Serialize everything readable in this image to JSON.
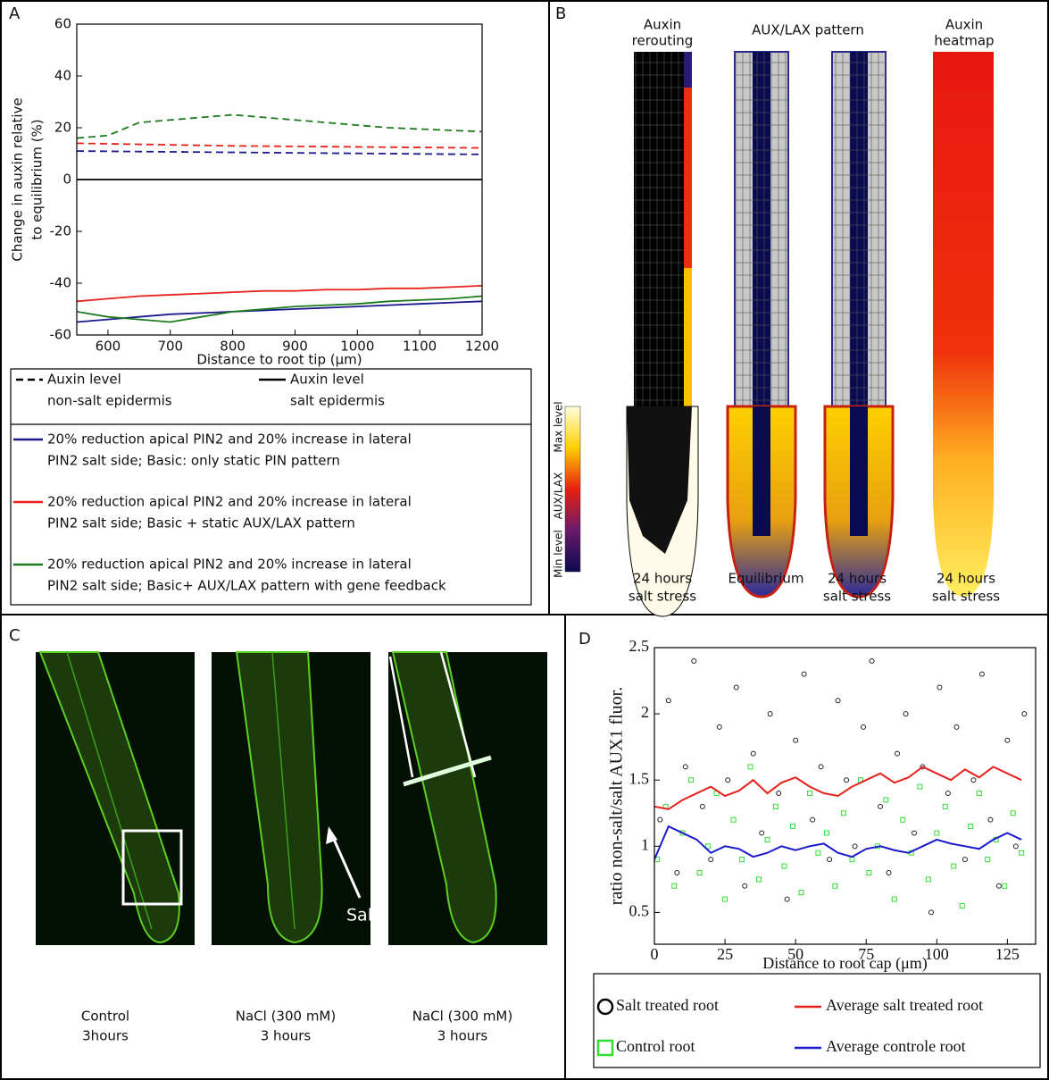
{
  "chart_data": [
    {
      "type": "line",
      "xlabel": "Distance to root tip (μm)",
      "ylabel": [
        "Change in auxin relative",
        "to equilibrium (%)"
      ],
      "x": [
        550,
        600,
        650,
        700,
        750,
        800,
        850,
        900,
        950,
        1000,
        1050,
        1100,
        1150,
        1200
      ],
      "xlim": [
        550,
        1200
      ],
      "xticks": [
        600,
        700,
        800,
        900,
        1000,
        1100,
        1200
      ],
      "ylim": [
        -60,
        60
      ],
      "yticks": [
        -60,
        -40,
        -20,
        0,
        20,
        40,
        60
      ],
      "series": [
        {
          "color": "#1e7a1e",
          "style": "dashed",
          "values": [
            16,
            17,
            22,
            23,
            24,
            25,
            24,
            23,
            22,
            21,
            20,
            19.5,
            19,
            18.5
          ]
        },
        {
          "color": "#e8211d",
          "style": "dashed",
          "values": [
            14,
            13.8,
            13.6,
            13.4,
            13.2,
            13,
            12.9,
            12.8,
            12.7,
            12.6,
            12.5,
            12.4,
            12.3,
            12.2
          ]
        },
        {
          "color": "#1a1a8c",
          "style": "dashed",
          "values": [
            11,
            10.9,
            10.8,
            10.7,
            10.6,
            10.5,
            10.4,
            10.3,
            10.2,
            10.1,
            10,
            9.9,
            9.8,
            9.7
          ]
        },
        {
          "color": "#000000",
          "style": "solid",
          "values": [
            0,
            0,
            0,
            0,
            0,
            0,
            0,
            0,
            0,
            0,
            0,
            0,
            0,
            0
          ]
        },
        {
          "color": "#e8211d",
          "style": "solid",
          "values": [
            -47,
            -46,
            -45,
            -44.5,
            -44,
            -43.5,
            -43,
            -43,
            -42.5,
            -42.5,
            -42,
            -42,
            -41.5,
            -41
          ]
        },
        {
          "color": "#1a1a8c",
          "style": "solid",
          "values": [
            -55,
            -54,
            -53,
            -52,
            -51.5,
            -51,
            -50.5,
            -50,
            -49.5,
            -49,
            -48.5,
            -48,
            -47.5,
            -47
          ]
        },
        {
          "color": "#1e7a1e",
          "style": "solid",
          "values": [
            -51,
            -53,
            -54,
            -55,
            -53,
            -51,
            -50,
            -49,
            -48.5,
            -48,
            -47,
            -46.5,
            -46,
            -45
          ]
        }
      ],
      "legend": {
        "styles": [
          {
            "style": "dashed",
            "label": [
              "Auxin level",
              "non-salt epidermis"
            ]
          },
          {
            "style": "solid",
            "label": [
              "Auxin level",
              "salt epidermis"
            ]
          }
        ],
        "colors": [
          {
            "color": "#1a1a8c",
            "label": [
              "20% reduction apical PIN2 and 20% increase in lateral",
              "PIN2 salt side; Basic: only static PIN pattern"
            ]
          },
          {
            "color": "#e8211d",
            "label": [
              "20% reduction apical PIN2 and 20% increase in lateral",
              "PIN2 salt side; Basic + static AUX/LAX pattern"
            ]
          },
          {
            "color": "#1e7a1e",
            "label": [
              "20% reduction apical PIN2 and 20% increase in lateral",
              "PIN2 salt side; Basic+ AUX/LAX pattern with gene feedback"
            ]
          }
        ]
      }
    },
    {
      "type": "scatter",
      "xlabel": "Distance to root cap (μm)",
      "ylabel": "ratio non-salt/salt AUX1 fluor.",
      "xlim": [
        0,
        135
      ],
      "xticks": [
        0,
        25,
        50,
        75,
        100,
        125
      ],
      "ylim": [
        0.26,
        2.5
      ],
      "yticks": [
        0.5,
        1,
        1.5,
        2,
        2.5
      ],
      "series": [
        {
          "name": "Salt treated root",
          "color": "#222222",
          "marker": "circle",
          "x": [
            2,
            5,
            8,
            11,
            14,
            17,
            20,
            23,
            26,
            29,
            32,
            35,
            38,
            41,
            44,
            47,
            50,
            53,
            56,
            59,
            62,
            65,
            68,
            71,
            74,
            77,
            80,
            83,
            86,
            89,
            92,
            95,
            98,
            101,
            104,
            107,
            110,
            113,
            116,
            119,
            122,
            125,
            128,
            131
          ],
          "y": [
            1.2,
            2.1,
            0.8,
            1.6,
            2.4,
            1.3,
            0.9,
            1.9,
            1.5,
            2.2,
            0.7,
            1.7,
            1.1,
            2.0,
            1.4,
            0.6,
            1.8,
            2.3,
            1.2,
            1.6,
            0.9,
            2.1,
            1.5,
            1.0,
            1.9,
            2.4,
            1.3,
            0.8,
            1.7,
            2.0,
            1.1,
            1.6,
            0.5,
            2.2,
            1.4,
            1.9,
            0.9,
            1.5,
            2.3,
            1.2,
            0.7,
            1.8,
            1.0,
            2.0
          ]
        },
        {
          "name": "Average salt treated root",
          "color": "#e8211d",
          "x": [
            0,
            5,
            10,
            15,
            20,
            25,
            30,
            35,
            40,
            45,
            50,
            55,
            60,
            65,
            70,
            75,
            80,
            85,
            90,
            95,
            100,
            105,
            110,
            115,
            120,
            125,
            130
          ],
          "y": [
            1.3,
            1.28,
            1.35,
            1.4,
            1.45,
            1.38,
            1.42,
            1.5,
            1.4,
            1.48,
            1.52,
            1.45,
            1.4,
            1.38,
            1.45,
            1.5,
            1.55,
            1.48,
            1.52,
            1.6,
            1.55,
            1.5,
            1.58,
            1.52,
            1.6,
            1.55,
            1.5
          ]
        },
        {
          "name": "Control root",
          "color": "#33dd33",
          "marker": "square",
          "x": [
            1,
            4,
            7,
            10,
            13,
            16,
            19,
            22,
            25,
            28,
            31,
            34,
            37,
            40,
            43,
            46,
            49,
            52,
            55,
            58,
            61,
            64,
            67,
            70,
            73,
            76,
            79,
            82,
            85,
            88,
            91,
            94,
            97,
            100,
            103,
            106,
            109,
            112,
            115,
            118,
            121,
            124,
            127,
            130
          ],
          "y": [
            0.9,
            1.3,
            0.7,
            1.1,
            1.5,
            0.8,
            1.0,
            1.4,
            0.6,
            1.2,
            0.9,
            1.6,
            0.75,
            1.05,
            1.3,
            0.85,
            1.15,
            0.65,
            1.4,
            0.95,
            1.1,
            0.7,
            1.25,
            0.9,
            1.5,
            0.8,
            1.0,
            1.35,
            0.6,
            1.2,
            0.95,
            1.45,
            0.75,
            1.1,
            1.3,
            0.85,
            0.55,
            1.15,
            1.4,
            0.9,
            1.05,
            0.7,
            1.25,
            0.95
          ]
        },
        {
          "name": "Average controle root",
          "color": "#1a1acc",
          "x": [
            0,
            5,
            10,
            15,
            20,
            25,
            30,
            35,
            40,
            45,
            50,
            55,
            60,
            65,
            70,
            75,
            80,
            85,
            90,
            95,
            100,
            105,
            110,
            115,
            120,
            125,
            130
          ],
          "y": [
            0.9,
            1.15,
            1.1,
            1.05,
            0.95,
            1.0,
            0.98,
            0.92,
            0.95,
            1.0,
            0.97,
            1.0,
            1.02,
            0.95,
            0.92,
            0.98,
            1.0,
            0.97,
            0.95,
            1.0,
            1.05,
            1.02,
            1.0,
            0.98,
            1.05,
            1.1,
            1.05
          ]
        }
      ]
    }
  ],
  "panel_labels": [
    "A",
    "B",
    "C",
    "D"
  ],
  "panel_b": {
    "group_title": "AUX/LAX pattern",
    "columns": [
      {
        "title": [
          "Auxin",
          "rerouting"
        ],
        "caption": [
          "24 hours",
          "salt stress"
        ]
      },
      {
        "caption": [
          "Equilibrium"
        ]
      },
      {
        "caption": [
          "24 hours",
          "salt stress"
        ]
      },
      {
        "title": [
          "Auxin",
          "heatmap"
        ],
        "caption": [
          "24 hours",
          "salt stress"
        ]
      }
    ],
    "colorbar": [
      "Max level",
      "AUX/LAX",
      "Min level"
    ]
  },
  "panel_c": {
    "images": [
      {
        "caption": [
          "Control",
          "3hours"
        ]
      },
      {
        "caption": [
          "NaCl (300 mM)",
          "3 hours"
        ]
      },
      {
        "caption": [
          "NaCl (300 mM)",
          "3 hours"
        ]
      }
    ],
    "annotation": "Salt"
  }
}
